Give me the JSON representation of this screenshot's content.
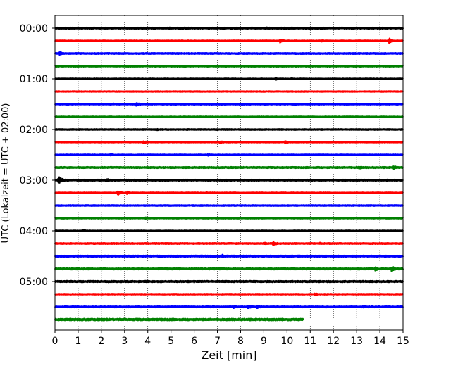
{
  "chart_data": {
    "type": "line",
    "subtype": "helicorder",
    "xlabel": "Zeit  [min]",
    "ylabel": "UTC (Lokalzeit = UTC + 02:00)",
    "xlim": [
      0,
      15
    ],
    "x_ticks": [
      "0",
      "1",
      "2",
      "3",
      "4",
      "5",
      "6",
      "7",
      "8",
      "9",
      "10",
      "11",
      "12",
      "13",
      "14",
      "15"
    ],
    "y_ticks": [
      "00:00",
      "01:00",
      "02:00",
      "03:00",
      "04:00",
      "05:00"
    ],
    "grid": "vertical dotted",
    "trace_colors": [
      "#000000",
      "#ff0000",
      "#0000ff",
      "#008000"
    ],
    "traces": [
      {
        "start": "00:00",
        "color": "#000000",
        "amplitude": 0.8,
        "end_min": 15,
        "events": [
          {
            "t": 4.9,
            "a": 1.3
          },
          {
            "t": 5.6,
            "a": 1.6
          },
          {
            "t": 9.1,
            "a": 1.2
          },
          {
            "t": 13.5,
            "a": 1.2
          }
        ]
      },
      {
        "start": "00:15",
        "color": "#ff0000",
        "amplitude": 0.6,
        "end_min": 15,
        "events": [
          {
            "t": 9.7,
            "a": 2.2
          },
          {
            "t": 14.4,
            "a": 3.2
          },
          {
            "t": 11.5,
            "a": 1.0
          }
        ]
      },
      {
        "start": "00:30",
        "color": "#0000ff",
        "amplitude": 0.7,
        "end_min": 15,
        "events": [
          {
            "t": 0.2,
            "a": 2.0
          },
          {
            "t": 2.1,
            "a": 0.9
          }
        ]
      },
      {
        "start": "00:45",
        "color": "#008000",
        "amplitude": 0.7,
        "end_min": 15,
        "events": [
          {
            "t": 1.0,
            "a": 0.8
          },
          {
            "t": 6.2,
            "a": 0.9
          },
          {
            "t": 8.7,
            "a": 0.8
          }
        ]
      },
      {
        "start": "01:00",
        "color": "#000000",
        "amplitude": 0.6,
        "end_min": 15,
        "events": [
          {
            "t": 9.5,
            "a": 1.4
          },
          {
            "t": 10.2,
            "a": 1.2
          }
        ]
      },
      {
        "start": "01:15",
        "color": "#ff0000",
        "amplitude": 0.5,
        "end_min": 15,
        "events": []
      },
      {
        "start": "01:30",
        "color": "#0000ff",
        "amplitude": 0.7,
        "end_min": 15,
        "events": [
          {
            "t": 2.5,
            "a": 1.3
          },
          {
            "t": 3.5,
            "a": 2.0
          }
        ]
      },
      {
        "start": "01:45",
        "color": "#008000",
        "amplitude": 0.6,
        "end_min": 15,
        "events": []
      },
      {
        "start": "02:00",
        "color": "#000000",
        "amplitude": 0.6,
        "end_min": 15,
        "events": [
          {
            "t": 4.4,
            "a": 1.0
          },
          {
            "t": 5.7,
            "a": 0.9
          },
          {
            "t": 7.0,
            "a": 1.0
          },
          {
            "t": 12.2,
            "a": 0.8
          }
        ]
      },
      {
        "start": "02:15",
        "color": "#ff0000",
        "amplitude": 0.5,
        "end_min": 15,
        "events": [
          {
            "t": 3.8,
            "a": 1.8
          },
          {
            "t": 7.1,
            "a": 2.0
          },
          {
            "t": 9.9,
            "a": 1.6
          }
        ]
      },
      {
        "start": "02:30",
        "color": "#0000ff",
        "amplitude": 0.6,
        "end_min": 15,
        "events": [
          {
            "t": 2.4,
            "a": 1.2
          },
          {
            "t": 6.6,
            "a": 1.2
          },
          {
            "t": 10.0,
            "a": 0.9
          }
        ]
      },
      {
        "start": "02:45",
        "color": "#008000",
        "amplitude": 0.8,
        "end_min": 15,
        "events": [
          {
            "t": 13.1,
            "a": 1.8
          },
          {
            "t": 14.6,
            "a": 2.3
          }
        ]
      },
      {
        "start": "03:00",
        "color": "#000000",
        "amplitude": 0.8,
        "end_min": 15,
        "events": [
          {
            "t": 0.15,
            "a": 4.5
          },
          {
            "t": 2.2,
            "a": 2.2
          },
          {
            "t": 14.3,
            "a": 1.2
          }
        ]
      },
      {
        "start": "03:15",
        "color": "#ff0000",
        "amplitude": 0.6,
        "end_min": 15,
        "events": [
          {
            "t": 2.7,
            "a": 2.6
          },
          {
            "t": 3.1,
            "a": 1.8
          },
          {
            "t": 6.5,
            "a": 1.0
          }
        ]
      },
      {
        "start": "03:30",
        "color": "#0000ff",
        "amplitude": 0.6,
        "end_min": 15,
        "events": []
      },
      {
        "start": "03:45",
        "color": "#008000",
        "amplitude": 0.6,
        "end_min": 15,
        "events": [
          {
            "t": 3.9,
            "a": 1.3
          }
        ]
      },
      {
        "start": "04:00",
        "color": "#000000",
        "amplitude": 0.6,
        "end_min": 15,
        "events": [
          {
            "t": 1.2,
            "a": 1.3
          }
        ]
      },
      {
        "start": "04:15",
        "color": "#ff0000",
        "amplitude": 0.7,
        "end_min": 15,
        "events": [
          {
            "t": 9.0,
            "a": 1.7
          },
          {
            "t": 9.4,
            "a": 2.5
          },
          {
            "t": 11.4,
            "a": 1.2
          }
        ]
      },
      {
        "start": "04:30",
        "color": "#0000ff",
        "amplitude": 0.9,
        "end_min": 15,
        "events": [
          {
            "t": 7.2,
            "a": 1.9
          },
          {
            "t": 8.1,
            "a": 1.6
          },
          {
            "t": 8.5,
            "a": 1.5
          },
          {
            "t": 9.8,
            "a": 1.2
          }
        ]
      },
      {
        "start": "04:45",
        "color": "#008000",
        "amplitude": 0.9,
        "end_min": 15,
        "events": [
          {
            "t": 13.8,
            "a": 2.2
          },
          {
            "t": 14.5,
            "a": 3.4
          }
        ]
      },
      {
        "start": "05:00",
        "color": "#000000",
        "amplitude": 0.9,
        "end_min": 15,
        "events": [
          {
            "t": 2.3,
            "a": 1.3
          },
          {
            "t": 6.0,
            "a": 1.2
          },
          {
            "t": 13.5,
            "a": 1.1
          }
        ]
      },
      {
        "start": "05:15",
        "color": "#ff0000",
        "amplitude": 0.6,
        "end_min": 15,
        "events": [
          {
            "t": 11.2,
            "a": 1.6
          }
        ]
      },
      {
        "start": "05:30",
        "color": "#0000ff",
        "amplitude": 0.8,
        "end_min": 15,
        "events": [
          {
            "t": 7.7,
            "a": 1.6
          },
          {
            "t": 8.3,
            "a": 2.2
          },
          {
            "t": 8.7,
            "a": 2.4
          },
          {
            "t": 13.3,
            "a": 1.2
          }
        ]
      },
      {
        "start": "05:45",
        "color": "#008000",
        "amplitude": 1.1,
        "end_min": 10.7,
        "events": [
          {
            "t": 2.1,
            "a": 1.6
          },
          {
            "t": 0.3,
            "a": 1.3
          }
        ]
      }
    ]
  }
}
